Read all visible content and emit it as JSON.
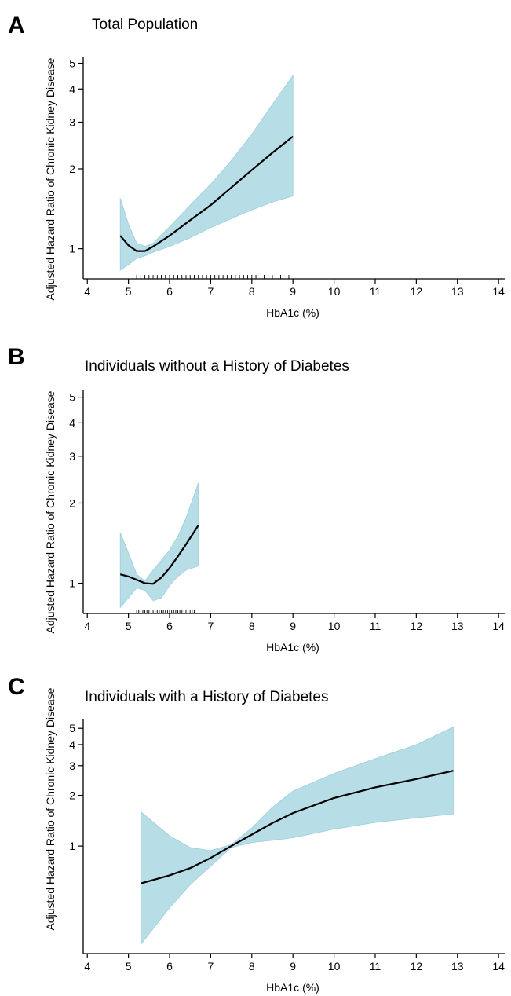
{
  "chart_data": [
    {
      "type": "area",
      "panel_label": "A",
      "title": "Total Population",
      "xlabel": "HbA1c (%)",
      "ylabel": "Adjusted Hazard Ratio of Chronic Kidney Disease",
      "xlim": [
        3.9,
        14.15
      ],
      "ylim": [
        0.77,
        5.3
      ],
      "y_scale": "log",
      "x_ticks": [
        4,
        5,
        6,
        7,
        8,
        9,
        10,
        11,
        12,
        13,
        14
      ],
      "y_ticks": [
        1,
        2,
        3,
        4,
        5
      ],
      "band_color": "#b7dde6",
      "line_color": "#000000",
      "series": [
        {
          "x": [
            4.8,
            5.0,
            5.2,
            5.4,
            5.6,
            6.0,
            6.5,
            7.0,
            7.5,
            8.0,
            8.5,
            9.0
          ],
          "hr": [
            1.12,
            1.03,
            0.98,
            0.98,
            1.02,
            1.12,
            1.28,
            1.46,
            1.7,
            1.98,
            2.3,
            2.65
          ],
          "lower": [
            0.83,
            0.87,
            0.92,
            0.94,
            0.97,
            1.02,
            1.1,
            1.2,
            1.3,
            1.4,
            1.5,
            1.58
          ],
          "upper": [
            1.55,
            1.24,
            1.05,
            1.02,
            1.05,
            1.21,
            1.46,
            1.75,
            2.15,
            2.7,
            3.5,
            4.5
          ]
        }
      ],
      "rug": [
        5.2,
        5.3,
        5.4,
        5.5,
        5.6,
        5.7,
        5.8,
        5.9,
        6.0,
        6.1,
        6.2,
        6.3,
        6.4,
        6.5,
        6.6,
        6.7,
        6.8,
        6.9,
        7.0,
        7.1,
        7.2,
        7.3,
        7.4,
        7.5,
        7.6,
        7.7,
        7.8,
        7.9,
        8.0,
        8.1,
        8.3,
        8.5,
        8.7,
        8.9
      ]
    },
    {
      "type": "area",
      "panel_label": "B",
      "title": "Individuals without a History of Diabetes",
      "xlabel": "HbA1c (%)",
      "ylabel": "Adjusted Hazard Ratio of Chronic Kidney Disease",
      "xlim": [
        3.9,
        14.15
      ],
      "ylim": [
        0.77,
        5.3
      ],
      "y_scale": "log",
      "x_ticks": [
        4,
        5,
        6,
        7,
        8,
        9,
        10,
        11,
        12,
        13,
        14
      ],
      "y_ticks": [
        1,
        2,
        3,
        4,
        5
      ],
      "band_color": "#b7dde6",
      "line_color": "#000000",
      "series": [
        {
          "x": [
            4.8,
            5.0,
            5.2,
            5.4,
            5.6,
            5.8,
            6.0,
            6.2,
            6.4,
            6.7
          ],
          "hr": [
            1.08,
            1.06,
            1.03,
            1.0,
            0.995,
            1.05,
            1.14,
            1.26,
            1.4,
            1.65
          ],
          "lower": [
            0.81,
            0.88,
            0.96,
            0.94,
            0.86,
            0.88,
            0.98,
            1.06,
            1.12,
            1.16
          ],
          "upper": [
            1.55,
            1.3,
            1.08,
            1.02,
            1.12,
            1.22,
            1.33,
            1.5,
            1.76,
            2.38
          ]
        }
      ],
      "rug": [
        5.2,
        5.25,
        5.3,
        5.35,
        5.4,
        5.45,
        5.5,
        5.55,
        5.6,
        5.65,
        5.7,
        5.75,
        5.8,
        5.85,
        5.9,
        5.95,
        6.0,
        6.05,
        6.1,
        6.15,
        6.2,
        6.25,
        6.3,
        6.35,
        6.4,
        6.45,
        6.5,
        6.55,
        6.6
      ]
    },
    {
      "type": "area",
      "panel_label": "C",
      "title": "Individuals with a History of Diabetes",
      "xlabel": "HbA1c (%)",
      "ylabel": "Adjusted Hazard Ratio of  Chronic Kidney Disease",
      "xlim": [
        3.9,
        14.15
      ],
      "ylim": [
        0.23,
        5.7
      ],
      "y_scale": "log",
      "x_ticks": [
        4,
        5,
        6,
        7,
        8,
        9,
        10,
        11,
        12,
        13,
        14
      ],
      "y_ticks": [
        1,
        2,
        3,
        4,
        5
      ],
      "band_color": "#b7dde6",
      "line_color": "#000000",
      "series": [
        {
          "x": [
            5.3,
            6.0,
            6.5,
            7.0,
            7.5,
            8.0,
            8.5,
            9.0,
            10.0,
            11.0,
            12.0,
            12.9
          ],
          "hr": [
            0.6,
            0.67,
            0.74,
            0.85,
            1.0,
            1.17,
            1.37,
            1.57,
            1.93,
            2.23,
            2.5,
            2.8
          ],
          "lower": [
            0.26,
            0.43,
            0.59,
            0.76,
            0.98,
            1.05,
            1.08,
            1.12,
            1.26,
            1.38,
            1.47,
            1.55
          ],
          "upper": [
            1.6,
            1.15,
            0.98,
            0.94,
            1.02,
            1.28,
            1.7,
            2.12,
            2.7,
            3.3,
            4.0,
            5.1
          ]
        }
      ],
      "rug": []
    }
  ]
}
